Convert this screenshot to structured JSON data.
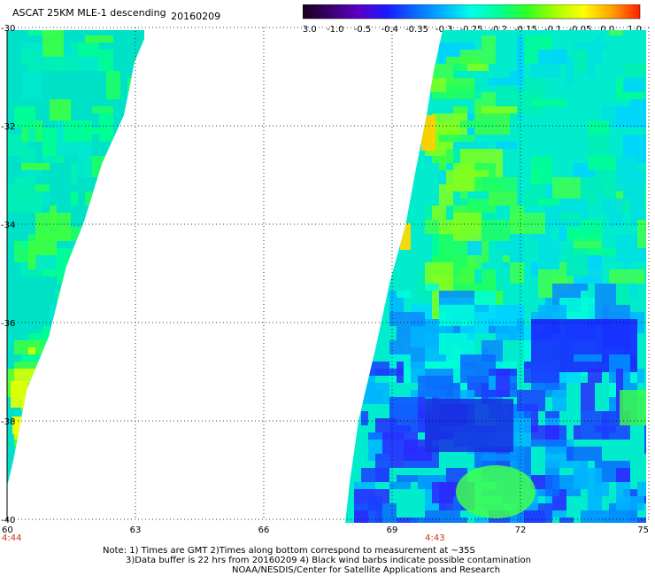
{
  "title": {
    "product": "ASCAT 25KM MLE-1 descending",
    "date": "20160209"
  },
  "colors": {
    "time_label": "#c8321e",
    "grid": "#000000",
    "background": "#ffffff"
  },
  "colorbar": {
    "tick_labels": [
      "-3.0",
      "-1.0",
      "-0.5",
      "-0.4",
      "-0.35",
      "-0.3",
      "-0.25",
      "-0.2",
      "-0.15",
      "-0.1",
      "-0.05",
      "0.0",
      "1.0"
    ],
    "stops": [
      "#1a0018",
      "#3a0070",
      "#5a00c8",
      "#1a1aff",
      "#0a6aff",
      "#00b4ff",
      "#00ffe8",
      "#00ff96",
      "#32ff20",
      "#aaff00",
      "#ffff00",
      "#ffa000",
      "#ff2000"
    ]
  },
  "map": {
    "lon_range": [
      60,
      75
    ],
    "lat_range": [
      -40,
      -30
    ],
    "lon_ticks": [
      "60",
      "63",
      "66",
      "69",
      "72",
      "75"
    ],
    "lat_ticks": [
      "-30",
      "-32",
      "-34",
      "-36",
      "-38",
      "-40"
    ],
    "time_labels": [
      {
        "text": "4:44",
        "lon": 60
      },
      {
        "text": "4:43",
        "lon": 70
      }
    ]
  },
  "notes": {
    "line1": "Note: 1) Times are GMT 2)Times along bottom correspond to measurement at ~35S",
    "line2": "3)Data buffer is 22 hrs from 20160209 4) Black wind barbs indicate possible contamination",
    "line3": "NOAA/NESDIS/Center for Satellite Applications and Research"
  }
}
